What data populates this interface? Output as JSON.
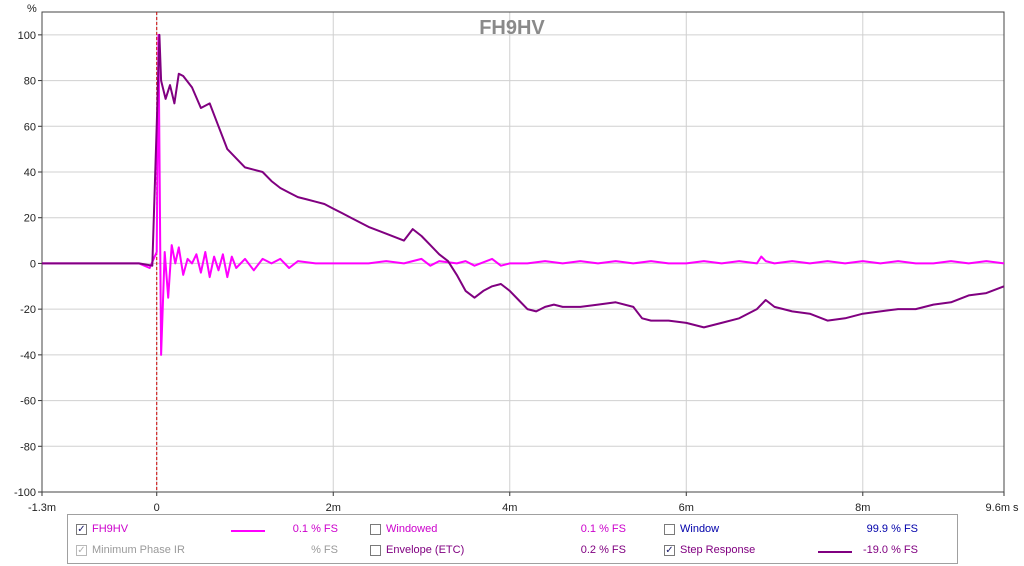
{
  "chart_data": {
    "type": "line",
    "title": "FH9HV",
    "ylabel": "%",
    "xunit": "s",
    "xlim": [
      -0.0013,
      0.0096
    ],
    "ylim": [
      -100,
      110
    ],
    "grid": true,
    "y_ticks": [
      100,
      80,
      60,
      40,
      20,
      0,
      -20,
      -40,
      -60,
      -80,
      -100
    ],
    "y_tick_labels": [
      "100",
      "80",
      "60",
      "40",
      "20",
      "0",
      "-20",
      "-40",
      "-60",
      "-80",
      "-100"
    ],
    "x_ticks": [
      -0.0013,
      0,
      0.002,
      0.004,
      0.006,
      0.008,
      0.0096
    ],
    "x_tick_labels": [
      "-1.3m",
      "0",
      "2m",
      "4m",
      "6m",
      "8m",
      "9.6m"
    ],
    "x_unit_label": "s",
    "marker_x": 0,
    "series": [
      {
        "name": "FH9HV",
        "color": "#ff00ff",
        "x": [
          -0.0013,
          -0.0002,
          -8e-05,
          0.0,
          2e-05,
          5e-05,
          9e-05,
          0.00013,
          0.00017,
          0.00021,
          0.00025,
          0.0003,
          0.00035,
          0.0004,
          0.00045,
          0.0005,
          0.00055,
          0.0006,
          0.00065,
          0.0007,
          0.00075,
          0.0008,
          0.00085,
          0.0009,
          0.001,
          0.0011,
          0.0012,
          0.0013,
          0.0014,
          0.0015,
          0.0016,
          0.0018,
          0.002,
          0.0022,
          0.0024,
          0.0026,
          0.0028,
          0.003,
          0.0031,
          0.0032,
          0.0034,
          0.0035,
          0.0036,
          0.0038,
          0.0039,
          0.004,
          0.0042,
          0.0044,
          0.0046,
          0.0048,
          0.005,
          0.0052,
          0.0054,
          0.0056,
          0.0058,
          0.006,
          0.0062,
          0.0064,
          0.0066,
          0.0068,
          0.00685,
          0.0069,
          0.007,
          0.0072,
          0.0074,
          0.0076,
          0.0078,
          0.008,
          0.0082,
          0.0084,
          0.0086,
          0.0088,
          0.009,
          0.0092,
          0.0094,
          0.0096
        ],
        "values": [
          0,
          0,
          -2,
          5,
          100,
          -40,
          5,
          -15,
          8,
          0,
          7,
          -5,
          2,
          0,
          4,
          -4,
          5,
          -6,
          3,
          -3,
          4,
          -6,
          3,
          -2,
          2,
          -3,
          2,
          0,
          2,
          -2,
          1,
          0,
          0,
          0,
          0,
          1,
          0,
          2,
          -1,
          1,
          0,
          1,
          -1,
          2,
          -1,
          0,
          0,
          1,
          0,
          1,
          0,
          1,
          0,
          1,
          0,
          0,
          1,
          0,
          1,
          0,
          3,
          1,
          0,
          1,
          0,
          1,
          0,
          1,
          0,
          1,
          0,
          0,
          1,
          0,
          1,
          0
        ]
      },
      {
        "name": "Step Response",
        "color": "#800080",
        "x": [
          -0.0013,
          -0.0002,
          -5e-05,
          0.0,
          3e-05,
          5e-05,
          0.0001,
          0.00015,
          0.0002,
          0.00025,
          0.0003,
          0.0004,
          0.0005,
          0.0006,
          0.0007,
          0.0008,
          0.0009,
          0.001,
          0.0011,
          0.0012,
          0.0013,
          0.0014,
          0.0015,
          0.0016,
          0.0017,
          0.0018,
          0.0019,
          0.002,
          0.0021,
          0.0022,
          0.0024,
          0.0026,
          0.0028,
          0.0029,
          0.003,
          0.0031,
          0.0032,
          0.0033,
          0.0034,
          0.0035,
          0.0036,
          0.0037,
          0.0038,
          0.0039,
          0.004,
          0.0041,
          0.0042,
          0.0043,
          0.0044,
          0.0045,
          0.0046,
          0.0048,
          0.005,
          0.0052,
          0.0054,
          0.0055,
          0.0056,
          0.0058,
          0.006,
          0.0062,
          0.0063,
          0.0064,
          0.0066,
          0.0068,
          0.0069,
          0.007,
          0.0071,
          0.0072,
          0.0074,
          0.0076,
          0.0078,
          0.008,
          0.0082,
          0.0084,
          0.0086,
          0.0088,
          0.009,
          0.0092,
          0.0094,
          0.0096
        ],
        "values": [
          0,
          0,
          -1,
          60,
          100,
          80,
          72,
          78,
          70,
          83,
          82,
          77,
          68,
          70,
          60,
          50,
          46,
          42,
          41,
          40,
          36,
          33,
          31,
          29,
          28,
          27,
          26,
          24,
          22,
          20,
          16,
          13,
          10,
          15,
          12,
          8,
          4,
          1,
          -5,
          -12,
          -15,
          -12,
          -10,
          -9,
          -12,
          -16,
          -20,
          -21,
          -19,
          -18,
          -19,
          -19,
          -18,
          -17,
          -19,
          -24,
          -25,
          -25,
          -26,
          -28,
          -27,
          -26,
          -24,
          -20,
          -16,
          -19,
          -20,
          -21,
          -22,
          -25,
          -24,
          -22,
          -21,
          -20,
          -20,
          -18,
          -17,
          -14,
          -13,
          -10
        ]
      }
    ]
  },
  "legend": {
    "items": [
      {
        "label": "FH9HV",
        "checked": true,
        "enabled": true,
        "color": "#cc00cc",
        "swatch": "#ff00ff",
        "value": "0.1 % FS"
      },
      {
        "label": "Windowed",
        "checked": false,
        "enabled": true,
        "color": "#cc00cc",
        "swatch": "",
        "value": "0.1 % FS"
      },
      {
        "label": "Window",
        "checked": false,
        "enabled": true,
        "color": "#0000aa",
        "swatch": "",
        "value": "99.9 % FS"
      },
      {
        "label": "Minimum Phase IR",
        "checked": true,
        "enabled": false,
        "color": "#9a9a9a",
        "swatch": "",
        "value": "% FS"
      },
      {
        "label": "Envelope (ETC)",
        "checked": false,
        "enabled": true,
        "color": "#800080",
        "swatch": "",
        "value": "0.2 % FS"
      },
      {
        "label": "Step Response",
        "checked": true,
        "enabled": true,
        "color": "#800080",
        "swatch": "#800080",
        "value": "-19.0 % FS"
      }
    ]
  }
}
